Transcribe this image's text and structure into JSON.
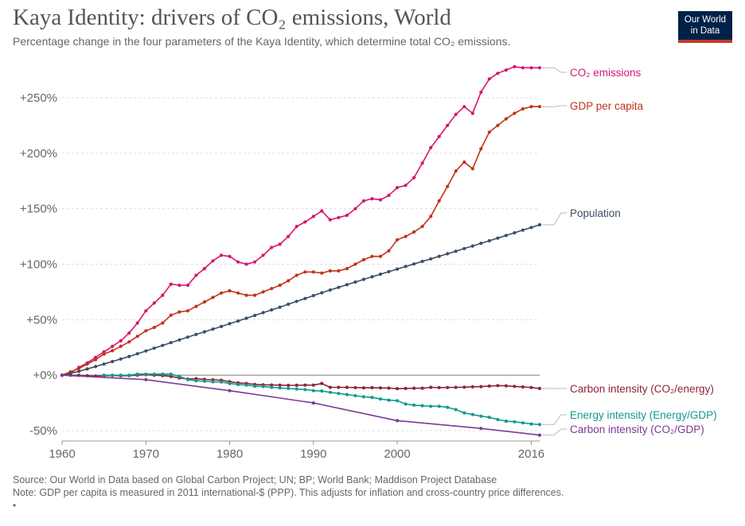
{
  "header": {
    "title": "Kaya Identity: drivers of CO₂ emissions, World",
    "subtitle": "Percentage change in the four parameters of the Kaya Identity, which determine total CO₂ emissions."
  },
  "logo": {
    "line1": "Our World",
    "line2": "in Data"
  },
  "footer": {
    "source": "Source: Our World in Data based on Global Carbon Project; UN; BP; World Bank; Maddison Project Database",
    "note": "Note: GDP per capita is measured in 2011 international-$ (PPP). This adjusts for inflation and cross-country price differences.",
    "marker": "•"
  },
  "chart_data": {
    "type": "line",
    "title": "Kaya Identity: drivers of CO₂ emissions, World",
    "xlabel": "",
    "ylabel": "",
    "xlim": [
      1960,
      2017
    ],
    "ylim": [
      -55,
      280
    ],
    "y_ticks": [
      {
        "value": 250,
        "label": "+250%"
      },
      {
        "value": 200,
        "label": "+200%"
      },
      {
        "value": 150,
        "label": "+150%"
      },
      {
        "value": 100,
        "label": "+100%"
      },
      {
        "value": 50,
        "label": "+50%"
      },
      {
        "value": 0,
        "label": "+0%"
      },
      {
        "value": -50,
        "label": "-50%"
      }
    ],
    "x_ticks": [
      {
        "value": 1960,
        "label": "1960"
      },
      {
        "value": 1970,
        "label": "1970"
      },
      {
        "value": 1980,
        "label": "1980"
      },
      {
        "value": 1990,
        "label": "1990"
      },
      {
        "value": 2000,
        "label": "2000"
      },
      {
        "value": 2016,
        "label": "2016"
      }
    ],
    "grid": true,
    "series": [
      {
        "name": "CO₂ emissions",
        "color": "#d6166e",
        "x": [
          1960,
          1961,
          1962,
          1963,
          1964,
          1965,
          1966,
          1967,
          1968,
          1969,
          1970,
          1971,
          1972,
          1973,
          1974,
          1975,
          1976,
          1977,
          1978,
          1979,
          1980,
          1981,
          1982,
          1983,
          1984,
          1985,
          1986,
          1987,
          1988,
          1989,
          1990,
          1991,
          1992,
          1993,
          1994,
          1995,
          1996,
          1997,
          1998,
          1999,
          2000,
          2001,
          2002,
          2003,
          2004,
          2005,
          2006,
          2007,
          2008,
          2009,
          2010,
          2011,
          2012,
          2013,
          2014,
          2015,
          2016,
          2017
        ],
        "y": [
          0,
          2,
          7,
          11,
          16,
          21,
          26,
          31,
          38,
          47,
          58,
          65,
          72,
          82,
          81,
          81,
          90,
          96,
          103,
          108,
          107,
          102,
          100,
          102,
          108,
          115,
          118,
          125,
          134,
          138,
          143,
          148,
          140,
          142,
          144,
          150,
          157,
          159,
          158,
          162,
          169,
          171,
          178,
          191,
          205,
          215,
          225,
          235,
          242,
          236,
          255,
          267,
          272,
          275,
          278,
          277,
          277,
          277
        ]
      },
      {
        "name": "GDP per capita",
        "color": "#c03418",
        "x": [
          1960,
          1961,
          1962,
          1963,
          1964,
          1965,
          1966,
          1967,
          1968,
          1969,
          1970,
          1971,
          1972,
          1973,
          1974,
          1975,
          1976,
          1977,
          1978,
          1979,
          1980,
          1981,
          1982,
          1983,
          1984,
          1985,
          1986,
          1987,
          1988,
          1989,
          1990,
          1991,
          1992,
          1993,
          1994,
          1995,
          1996,
          1997,
          1998,
          1999,
          2000,
          2001,
          2002,
          2003,
          2004,
          2005,
          2006,
          2007,
          2008,
          2009,
          2010,
          2011,
          2012,
          2013,
          2014,
          2015,
          2016,
          2017
        ],
        "y": [
          0,
          3,
          6,
          10,
          14,
          19,
          22,
          26,
          30,
          35,
          40,
          43,
          47,
          54,
          57,
          58,
          62,
          66,
          70,
          74,
          76,
          74,
          72,
          72,
          75,
          78,
          81,
          85,
          90,
          93,
          93,
          92,
          94,
          94,
          96,
          100,
          104,
          107,
          107,
          112,
          122,
          125,
          129,
          134,
          143,
          157,
          170,
          184,
          192,
          186,
          204,
          219,
          225,
          231,
          236,
          240,
          242,
          242
        ]
      },
      {
        "name": "Population",
        "color": "#3c4e66",
        "x": [
          1960,
          1961,
          1962,
          1963,
          1964,
          1965,
          1966,
          1967,
          1968,
          1969,
          1970,
          1971,
          1972,
          1973,
          1974,
          1975,
          1976,
          1977,
          1978,
          1979,
          1980,
          1981,
          1982,
          1983,
          1984,
          1985,
          1986,
          1987,
          1988,
          1989,
          1990,
          1991,
          1992,
          1993,
          1994,
          1995,
          1996,
          1997,
          1998,
          1999,
          2000,
          2001,
          2002,
          2003,
          2004,
          2005,
          2006,
          2007,
          2008,
          2009,
          2010,
          2011,
          2012,
          2013,
          2014,
          2015,
          2016,
          2017
        ],
        "y": [
          0,
          1.6,
          3.5,
          5.6,
          7.8,
          10,
          12.3,
          14.6,
          16.9,
          19.3,
          21.8,
          24.3,
          26.8,
          29.3,
          31.8,
          34.3,
          36.7,
          39.1,
          41.5,
          43.9,
          46.4,
          48.8,
          51.3,
          53.8,
          56.3,
          58.8,
          61.3,
          63.9,
          66.5,
          69.1,
          71.7,
          74.2,
          76.7,
          79.1,
          81.5,
          83.9,
          86.3,
          88.6,
          91,
          93.3,
          95.6,
          97.9,
          100.2,
          102.5,
          104.8,
          107.1,
          109.4,
          111.7,
          114.1,
          116.4,
          118.8,
          121.1,
          123.5,
          125.9,
          128.3,
          130.7,
          133.1,
          135.5
        ]
      },
      {
        "name": "Carbon intensity (CO₂/energy)",
        "color": "#8b2636",
        "x": [
          1960,
          1961,
          1962,
          1963,
          1964,
          1965,
          1966,
          1967,
          1968,
          1969,
          1970,
          1971,
          1972,
          1973,
          1974,
          1975,
          1976,
          1977,
          1978,
          1979,
          1980,
          1981,
          1982,
          1983,
          1984,
          1985,
          1986,
          1987,
          1988,
          1989,
          1990,
          1991,
          1992,
          1993,
          1994,
          1995,
          1996,
          1997,
          1998,
          1999,
          2000,
          2001,
          2002,
          2003,
          2004,
          2005,
          2006,
          2007,
          2008,
          2009,
          2010,
          2011,
          2012,
          2013,
          2014,
          2015,
          2016,
          2017
        ],
        "y": [
          0,
          0,
          -0.2,
          -0.5,
          -0.8,
          -0.5,
          -0.3,
          -0.5,
          -0.4,
          0,
          0.5,
          0,
          -0.4,
          -1.2,
          -2.5,
          -3.5,
          -3.2,
          -3.8,
          -4.2,
          -4.6,
          -5.8,
          -7,
          -7.5,
          -8.3,
          -8.7,
          -8.9,
          -9,
          -9.2,
          -9.1,
          -9,
          -9,
          -7.5,
          -11,
          -11,
          -11,
          -11.2,
          -11.4,
          -11.3,
          -11.5,
          -11.6,
          -12.2,
          -12,
          -11.8,
          -11.8,
          -11,
          -11.2,
          -11.1,
          -11,
          -10.8,
          -10.5,
          -10.3,
          -9.8,
          -9.4,
          -9.6,
          -10.1,
          -10.6,
          -11.1,
          -12
        ]
      },
      {
        "name": "Energy intensity (Energy/GDP)",
        "color": "#129b8d",
        "x": [
          1965,
          1966,
          1967,
          1968,
          1969,
          1970,
          1971,
          1972,
          1973,
          1974,
          1975,
          1976,
          1977,
          1978,
          1979,
          1980,
          1981,
          1982,
          1983,
          1984,
          1985,
          1986,
          1987,
          1988,
          1989,
          1990,
          1991,
          1992,
          1993,
          1994,
          1995,
          1996,
          1997,
          1998,
          1999,
          2000,
          2001,
          2002,
          2003,
          2004,
          2005,
          2006,
          2007,
          2008,
          2009,
          2010,
          2011,
          2012,
          2013,
          2014,
          2015,
          2016,
          2017
        ],
        "y": [
          0,
          0,
          0,
          0,
          1,
          1,
          1,
          1,
          1,
          -1,
          -4,
          -5,
          -5.5,
          -6,
          -6.2,
          -7.5,
          -8.5,
          -9,
          -10,
          -10.2,
          -11,
          -11.5,
          -12,
          -12.5,
          -13,
          -14,
          -14.3,
          -15.5,
          -16.5,
          -17.5,
          -18.5,
          -19.5,
          -20,
          -21.5,
          -22.5,
          -23,
          -26,
          -27,
          -27.5,
          -28,
          -28,
          -29,
          -31,
          -34,
          -35.5,
          -37,
          -38,
          -40,
          -41.5,
          -42,
          -43,
          -44,
          -44.5
        ]
      },
      {
        "name": "Carbon intensity (CO₂/GDP)",
        "color": "#7b3a96",
        "x": [
          1960,
          1970,
          1980,
          1990,
          2000,
          2010,
          2017
        ],
        "y": [
          0,
          -4,
          -14,
          -25,
          -41,
          -48,
          -54
        ]
      }
    ],
    "annotations": [
      "CO₂ emissions",
      "GDP per capita",
      "Population",
      "Carbon intensity (CO₂/energy)",
      "Energy intensity (Energy/GDP)",
      "Carbon intensity (CO₂/GDP)"
    ]
  }
}
